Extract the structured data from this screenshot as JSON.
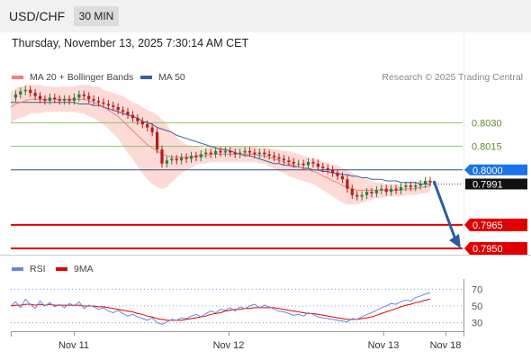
{
  "header": {
    "symbol": "USD/CHF",
    "timeframe": "30 MIN",
    "timestamp": "Thursday, November 13, 2025 7:30:14 AM CET"
  },
  "legend": {
    "ma20_label": "MA 20 + Bollinger Bands",
    "ma50_label": "MA 50",
    "credit": "Research © 2025 Trading Central",
    "rsi_label": "RSI",
    "rsi_ma_label": "9MA"
  },
  "colors": {
    "candle_up": "#2e7d32",
    "candle_down": "#b71c1c",
    "ma20": "#f08080",
    "ma50": "#3a5fa0",
    "bollinger_fill": "#fbd5cf",
    "support": "#e00000",
    "resistance": "#8cc269",
    "current_price": "#1a73e8",
    "forecast_arrow": "#2d5aa0",
    "rsi": "#6688dd",
    "rsi_ma": "#e00000"
  },
  "chart_data": [
    {
      "type": "candlestick",
      "title": "USD/CHF 30 MIN",
      "x_tick_labels": [
        "Nov 11",
        "Nov 12",
        "Nov 13",
        "Nov 18"
      ],
      "ylim": [
        0.7946,
        0.8052
      ],
      "close_path": [
        0.8046,
        0.8048,
        0.805,
        0.8051,
        0.8049,
        0.8047,
        0.8045,
        0.8044,
        0.8046,
        0.8045,
        0.8044,
        0.8045,
        0.8044,
        0.8046,
        0.8048,
        0.8047,
        0.8045,
        0.8044,
        0.8043,
        0.8042,
        0.8041,
        0.804,
        0.8038,
        0.8037,
        0.8035,
        0.8033,
        0.8031,
        0.8029,
        0.8027,
        0.8024,
        0.8013,
        0.8004,
        0.8006,
        0.8007,
        0.8006,
        0.8008,
        0.8007,
        0.8009,
        0.8008,
        0.801,
        0.8011,
        0.801,
        0.8012,
        0.8011,
        0.8012,
        0.8011,
        0.801,
        0.8011,
        0.8012,
        0.8011,
        0.801,
        0.8011,
        0.801,
        0.8009,
        0.8008,
        0.8007,
        0.8006,
        0.8005,
        0.8004,
        0.8004,
        0.8003,
        0.8005,
        0.8004,
        0.8002,
        0.8001,
        0.8,
        0.7998,
        0.7996,
        0.7994,
        0.7988,
        0.7984,
        0.7983,
        0.7984,
        0.7986,
        0.7985,
        0.7987,
        0.7988,
        0.7986,
        0.7988,
        0.7987,
        0.7989,
        0.799,
        0.7989,
        0.799,
        0.7991,
        0.7993,
        0.7992
      ],
      "ma20_path": [
        0.804,
        0.8042,
        0.8043,
        0.8044,
        0.8045,
        0.8045,
        0.8045,
        0.8045,
        0.8045,
        0.8045,
        0.8045,
        0.8045,
        0.8045,
        0.8045,
        0.8045,
        0.8045,
        0.8044,
        0.8043,
        0.8042,
        0.804,
        0.8038,
        0.8036,
        0.8034,
        0.8031,
        0.8028,
        0.8025,
        0.8022,
        0.8019,
        0.8016,
        0.8014,
        0.8012,
        0.801,
        0.8009,
        0.8008,
        0.8008,
        0.8008,
        0.8008,
        0.8008,
        0.8009,
        0.8009,
        0.8009,
        0.801,
        0.801,
        0.801,
        0.801,
        0.801,
        0.801,
        0.801,
        0.801,
        0.801,
        0.801,
        0.8009,
        0.8009,
        0.8008,
        0.8007,
        0.8006,
        0.8005,
        0.8004,
        0.8003,
        0.8002,
        0.8001,
        0.8,
        0.7999,
        0.7998,
        0.7996,
        0.7995,
        0.7993,
        0.7992,
        0.799,
        0.7989,
        0.7988,
        0.7987,
        0.7987,
        0.7987,
        0.7987,
        0.7987,
        0.7987,
        0.7987,
        0.7987,
        0.7987,
        0.7987,
        0.7988,
        0.7988,
        0.7988,
        0.7989,
        0.7989,
        0.799
      ],
      "ma50_path": [
        0.8043,
        0.8043,
        0.8043,
        0.8043,
        0.8043,
        0.8043,
        0.8043,
        0.8043,
        0.8043,
        0.8043,
        0.8043,
        0.8043,
        0.8043,
        0.8043,
        0.8042,
        0.8042,
        0.8042,
        0.8041,
        0.8041,
        0.804,
        0.8039,
        0.8038,
        0.8037,
        0.8036,
        0.8035,
        0.8034,
        0.8033,
        0.8031,
        0.803,
        0.8029,
        0.8027,
        0.8026,
        0.8025,
        0.8024,
        0.8022,
        0.8021,
        0.802,
        0.8019,
        0.8018,
        0.8017,
        0.8016,
        0.8015,
        0.8014,
        0.8013,
        0.8013,
        0.8012,
        0.8011,
        0.801,
        0.8009,
        0.8009,
        0.8008,
        0.8007,
        0.8006,
        0.8005,
        0.8004,
        0.8004,
        0.8003,
        0.8003,
        0.8002,
        0.8002,
        0.8001,
        0.8001,
        0.8,
        0.8,
        0.7999,
        0.7999,
        0.7998,
        0.7998,
        0.7997,
        0.7997,
        0.7996,
        0.7996,
        0.7995,
        0.7995,
        0.7994,
        0.7994,
        0.7994,
        0.7993,
        0.7993,
        0.7993,
        0.7992,
        0.7992,
        0.7992,
        0.7992,
        0.7991,
        0.7991,
        0.7991
      ],
      "bollinger_halfwidth_path": [
        0.001,
        0.001,
        0.001,
        0.001,
        0.0009,
        0.0009,
        0.0009,
        0.0008,
        0.0008,
        0.0008,
        0.0008,
        0.0008,
        0.0008,
        0.0008,
        0.0009,
        0.0009,
        0.001,
        0.001,
        0.0011,
        0.0011,
        0.0012,
        0.0013,
        0.0014,
        0.0016,
        0.0017,
        0.0018,
        0.002,
        0.0021,
        0.0022,
        0.0023,
        0.0023,
        0.0022,
        0.002,
        0.0016,
        0.0013,
        0.001,
        0.0008,
        0.0007,
        0.0006,
        0.0005,
        0.0005,
        0.0005,
        0.0005,
        0.0005,
        0.0005,
        0.0005,
        0.0005,
        0.0005,
        0.0005,
        0.0005,
        0.0005,
        0.0005,
        0.0005,
        0.0006,
        0.0006,
        0.0007,
        0.0007,
        0.0008,
        0.0008,
        0.0008,
        0.0008,
        0.0008,
        0.0008,
        0.0009,
        0.0009,
        0.001,
        0.001,
        0.0011,
        0.0011,
        0.0011,
        0.001,
        0.0009,
        0.0008,
        0.0007,
        0.0006,
        0.0005,
        0.0005,
        0.0004,
        0.0004,
        0.0004,
        0.0004,
        0.0004,
        0.0004,
        0.0004,
        0.0004,
        0.0004,
        0.0004
      ],
      "levels": [
        {
          "value": 0.803,
          "label": "0.8030",
          "kind": "resistance"
        },
        {
          "value": 0.8015,
          "label": "0.8015",
          "kind": "resistance"
        },
        {
          "value": 0.8,
          "label": "0.8000",
          "kind": "pivot"
        },
        {
          "value": 0.7965,
          "label": "0.7965",
          "kind": "support"
        },
        {
          "value": 0.795,
          "label": "0.7950",
          "kind": "support"
        }
      ],
      "last_price": 0.7991,
      "last_price_label": "0.7991",
      "forecast": {
        "from": 0.7993,
        "to": 0.795,
        "direction": "down"
      }
    },
    {
      "type": "line",
      "title": "RSI",
      "series": [
        {
          "name": "RSI"
        },
        {
          "name": "9MA"
        }
      ],
      "ylim": [
        20,
        80
      ],
      "y_ticks": [
        70,
        50,
        30
      ],
      "y_tick_labels": [
        "70",
        "50",
        "30"
      ],
      "rsi_path": [
        50,
        55,
        48,
        58,
        52,
        47,
        56,
        50,
        54,
        49,
        52,
        48,
        53,
        50,
        55,
        47,
        51,
        49,
        46,
        48,
        44,
        42,
        45,
        41,
        38,
        40,
        37,
        35,
        33,
        36,
        30,
        28,
        31,
        34,
        33,
        36,
        35,
        38,
        40,
        37,
        41,
        44,
        42,
        46,
        45,
        48,
        44,
        49,
        47,
        50,
        52,
        48,
        51,
        49,
        46,
        44,
        43,
        41,
        39,
        40,
        38,
        42,
        40,
        37,
        36,
        35,
        34,
        33,
        32,
        31,
        35,
        34,
        37,
        40,
        42,
        45,
        48,
        50,
        53,
        52,
        55,
        57,
        56,
        60,
        62,
        64,
        66
      ],
      "rsi_ma_path": [
        50,
        51,
        51,
        52,
        52,
        51,
        52,
        51,
        52,
        51,
        51,
        51,
        51,
        51,
        51,
        50,
        50,
        50,
        49,
        49,
        48,
        47,
        46,
        45,
        44,
        43,
        41,
        40,
        38,
        37,
        35,
        34,
        33,
        33,
        33,
        33,
        34,
        35,
        36,
        37,
        38,
        40,
        41,
        42,
        44,
        45,
        46,
        46,
        47,
        47,
        48,
        48,
        48,
        48,
        48,
        47,
        46,
        45,
        44,
        43,
        42,
        41,
        41,
        40,
        39,
        38,
        37,
        36,
        35,
        34,
        34,
        34,
        35,
        36,
        37,
        39,
        41,
        43,
        45,
        47,
        49,
        51,
        52,
        54,
        55,
        57,
        58
      ]
    }
  ]
}
